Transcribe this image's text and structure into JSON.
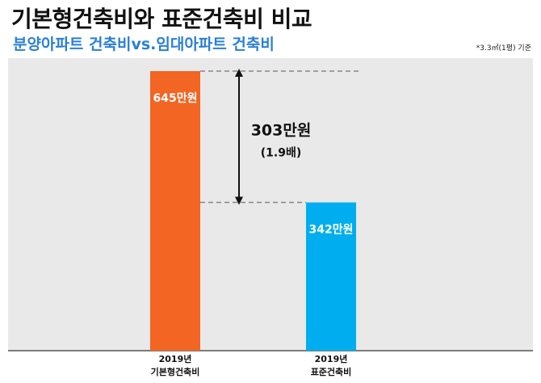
{
  "header": {
    "title": "기본형건축비와 표준건축비 비교",
    "subtitle": "분양아파트 건축비vs.임대아파트 건축비",
    "note": "*3.3㎡(1평) 기준"
  },
  "colors": {
    "basic": "#f26522",
    "standard": "#00aeef",
    "subtitle": "#2a7fd4",
    "panel": "#e9e9e9"
  },
  "chart_data": {
    "type": "bar",
    "categories": [
      [
        "2019년",
        "기본형건축비"
      ],
      [
        "2019년",
        "표준건축비"
      ]
    ],
    "values": [
      645,
      342
    ],
    "value_labels": [
      "645만원",
      "342만원"
    ],
    "unit": "만원",
    "difference": {
      "value_label": "303만원",
      "ratio_label": "(1.9배)"
    },
    "ylim": [
      0,
      700
    ],
    "grid": false,
    "legend": "none"
  }
}
